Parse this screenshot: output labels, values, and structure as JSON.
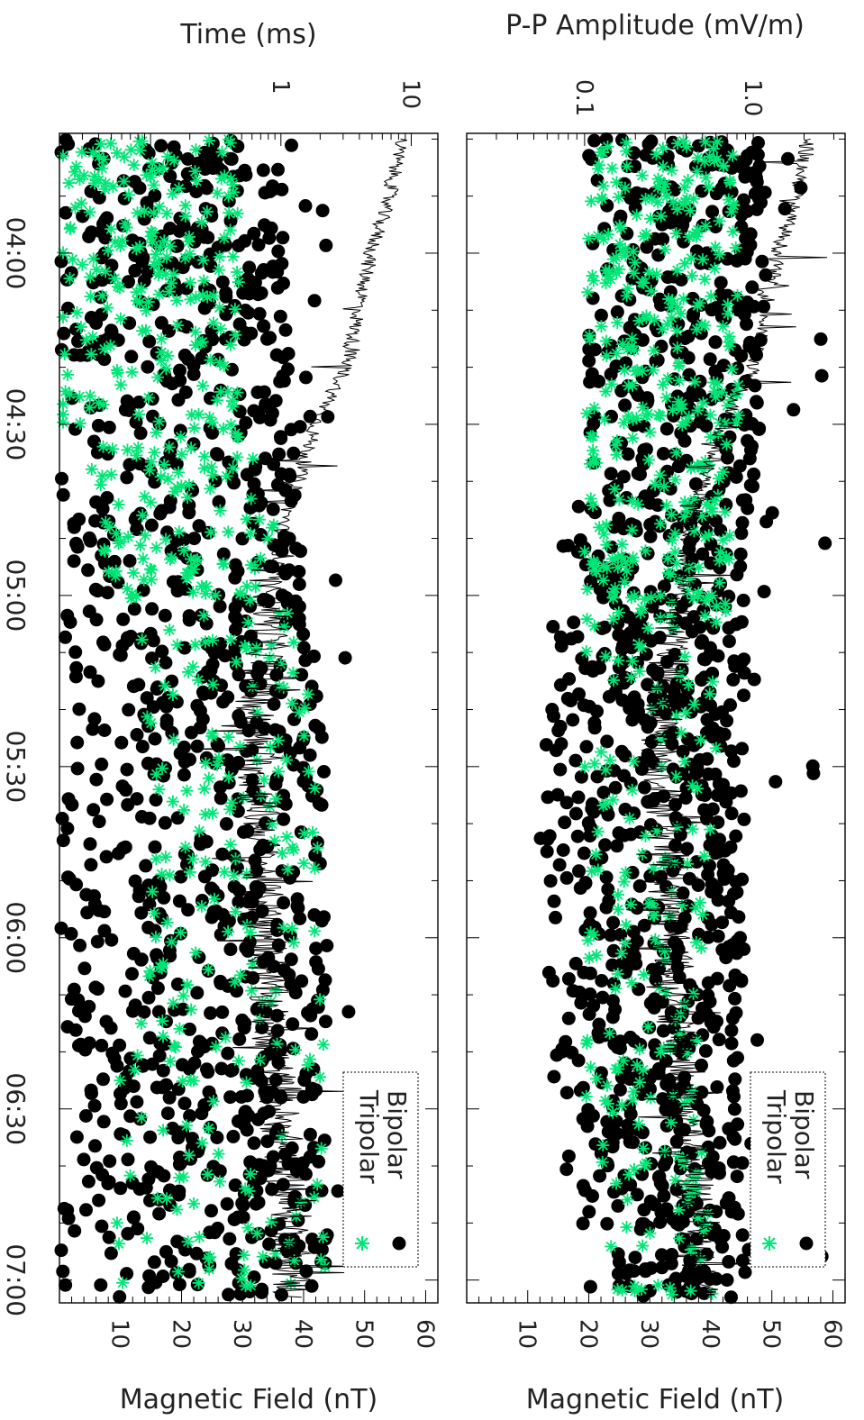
{
  "chart_data": [
    {
      "type": "scatter",
      "panel": "left",
      "top_axis_label": "Time (ms)",
      "top_axis_scale": "log",
      "top_axis_range": [
        0.02,
        16
      ],
      "top_ticks": [
        {
          "value": 1,
          "label": "1"
        },
        {
          "value": 10,
          "label": "10"
        }
      ],
      "bottom_axis_label": "Magnetic Field (nT)",
      "bottom_axis_range": [
        0,
        62
      ],
      "bottom_ticks": [
        "10",
        "20",
        "30",
        "40",
        "50",
        "60"
      ],
      "time_axis_range": [
        "03:39",
        "07:04"
      ],
      "time_ticks": [
        "04:00",
        "04:30",
        "05:00",
        "05:30",
        "06:00",
        "06:30",
        "07:00"
      ],
      "legend": [
        "Bipolar",
        "Tripolar"
      ],
      "legend_position": "bottom-right",
      "magnetic_field_profile": [
        {
          "t": "03:40",
          "value": 56
        },
        {
          "t": "03:50",
          "value": 54
        },
        {
          "t": "04:00",
          "value": 51
        },
        {
          "t": "04:10",
          "value": 49
        },
        {
          "t": "04:20",
          "value": 47
        },
        {
          "t": "04:30",
          "value": 42
        },
        {
          "t": "04:40",
          "value": 39
        },
        {
          "t": "04:50",
          "value": 36
        },
        {
          "t": "05:00",
          "value": 35
        },
        {
          "t": "05:10",
          "value": 34
        },
        {
          "t": "05:20",
          "value": 32
        },
        {
          "t": "05:30",
          "value": 32
        },
        {
          "t": "05:40",
          "value": 33
        },
        {
          "t": "05:50",
          "value": 33
        },
        {
          "t": "06:00",
          "value": 34
        },
        {
          "t": "06:10",
          "value": 34
        },
        {
          "t": "06:20",
          "value": 35
        },
        {
          "t": "06:30",
          "value": 36
        },
        {
          "t": "06:40",
          "value": 37
        },
        {
          "t": "06:50",
          "value": 38
        },
        {
          "t": "07:00",
          "value": 38
        }
      ],
      "bipolar_density": [
        {
          "t": "03:40",
          "lo": 0.02,
          "hi": 1.0
        },
        {
          "t": "04:00",
          "lo": 0.02,
          "hi": 1.1
        },
        {
          "t": "04:30",
          "lo": 0.02,
          "hi": 1.2
        },
        {
          "t": "05:00",
          "lo": 0.02,
          "hi": 1.6
        },
        {
          "t": "05:30",
          "lo": 0.02,
          "hi": 2.2
        },
        {
          "t": "06:00",
          "lo": 0.02,
          "hi": 2.4
        },
        {
          "t": "06:30",
          "lo": 0.02,
          "hi": 2.1
        },
        {
          "t": "07:00",
          "lo": 0.02,
          "hi": 2.6
        }
      ],
      "tripolar_density": [
        {
          "t": "03:40",
          "lo": 0.02,
          "hi": 0.5
        },
        {
          "t": "04:00",
          "lo": 0.02,
          "hi": 0.5
        },
        {
          "t": "04:30",
          "lo": 0.02,
          "hi": 0.5
        },
        {
          "t": "05:00",
          "lo": 0.05,
          "hi": 1.2
        },
        {
          "t": "05:30",
          "lo": 0.1,
          "hi": 2.0
        },
        {
          "t": "06:00",
          "lo": 0.1,
          "hi": 2.4
        },
        {
          "t": "06:30",
          "lo": 0.05,
          "hi": 2.0
        },
        {
          "t": "07:00",
          "lo": 0.05,
          "hi": 2.5
        }
      ]
    },
    {
      "type": "scatter",
      "panel": "right",
      "top_axis_label": "P-P Amplitude (mV/m)",
      "top_axis_scale": "log",
      "top_axis_range": [
        0.02,
        3.5
      ],
      "top_ticks": [
        {
          "value": 0.1,
          "label": "0.1"
        },
        {
          "value": 1.0,
          "label": "1.0"
        }
      ],
      "bottom_axis_label": "Magnetic Field (nT)",
      "bottom_axis_range": [
        0,
        62
      ],
      "bottom_ticks": [
        "10",
        "20",
        "30",
        "40",
        "50",
        "60"
      ],
      "time_axis_range": [
        "03:39",
        "07:04"
      ],
      "time_ticks": [
        "04:00",
        "04:30",
        "05:00",
        "05:30",
        "06:00",
        "06:30",
        "07:00"
      ],
      "legend": [
        "Bipolar",
        "Tripolar"
      ],
      "legend_position": "bottom-right",
      "magnetic_field_profile": [
        {
          "t": "03:40",
          "value": 56
        },
        {
          "t": "03:50",
          "value": 54
        },
        {
          "t": "04:00",
          "value": 51
        },
        {
          "t": "04:10",
          "value": 49
        },
        {
          "t": "04:20",
          "value": 47
        },
        {
          "t": "04:30",
          "value": 42
        },
        {
          "t": "04:40",
          "value": 39
        },
        {
          "t": "04:50",
          "value": 36
        },
        {
          "t": "05:00",
          "value": 35
        },
        {
          "t": "05:10",
          "value": 34
        },
        {
          "t": "05:20",
          "value": 32
        },
        {
          "t": "05:30",
          "value": 32
        },
        {
          "t": "05:40",
          "value": 33
        },
        {
          "t": "05:50",
          "value": 33
        },
        {
          "t": "06:00",
          "value": 34
        },
        {
          "t": "06:10",
          "value": 34
        },
        {
          "t": "06:20",
          "value": 35
        },
        {
          "t": "06:30",
          "value": 36
        },
        {
          "t": "06:40",
          "value": 37
        },
        {
          "t": "06:50",
          "value": 38
        },
        {
          "t": "07:00",
          "value": 38
        }
      ],
      "bipolar_density": [
        {
          "t": "03:40",
          "lo": 0.1,
          "hi": 1.1
        },
        {
          "t": "04:00",
          "lo": 0.1,
          "hi": 1.2
        },
        {
          "t": "04:30",
          "lo": 0.1,
          "hi": 1.1
        },
        {
          "t": "05:00",
          "lo": 0.06,
          "hi": 0.9
        },
        {
          "t": "05:30",
          "lo": 0.05,
          "hi": 0.9
        },
        {
          "t": "06:00",
          "lo": 0.06,
          "hi": 0.9
        },
        {
          "t": "06:30",
          "lo": 0.06,
          "hi": 0.8
        },
        {
          "t": "07:00",
          "lo": 0.1,
          "hi": 0.9
        }
      ],
      "tripolar_density": [
        {
          "t": "03:40",
          "lo": 0.12,
          "hi": 0.8
        },
        {
          "t": "04:00",
          "lo": 0.1,
          "hi": 0.8
        },
        {
          "t": "04:30",
          "lo": 0.1,
          "hi": 0.9
        },
        {
          "t": "05:00",
          "lo": 0.1,
          "hi": 0.7
        },
        {
          "t": "05:30",
          "lo": 0.1,
          "hi": 0.6
        },
        {
          "t": "06:00",
          "lo": 0.1,
          "hi": 0.5
        },
        {
          "t": "06:30",
          "lo": 0.1,
          "hi": 0.5
        },
        {
          "t": "07:00",
          "lo": 0.15,
          "hi": 0.6
        }
      ]
    }
  ],
  "colors": {
    "bipolar": "#000000",
    "tripolar": "#00e676",
    "line": "#000000",
    "axis": "#000000"
  }
}
